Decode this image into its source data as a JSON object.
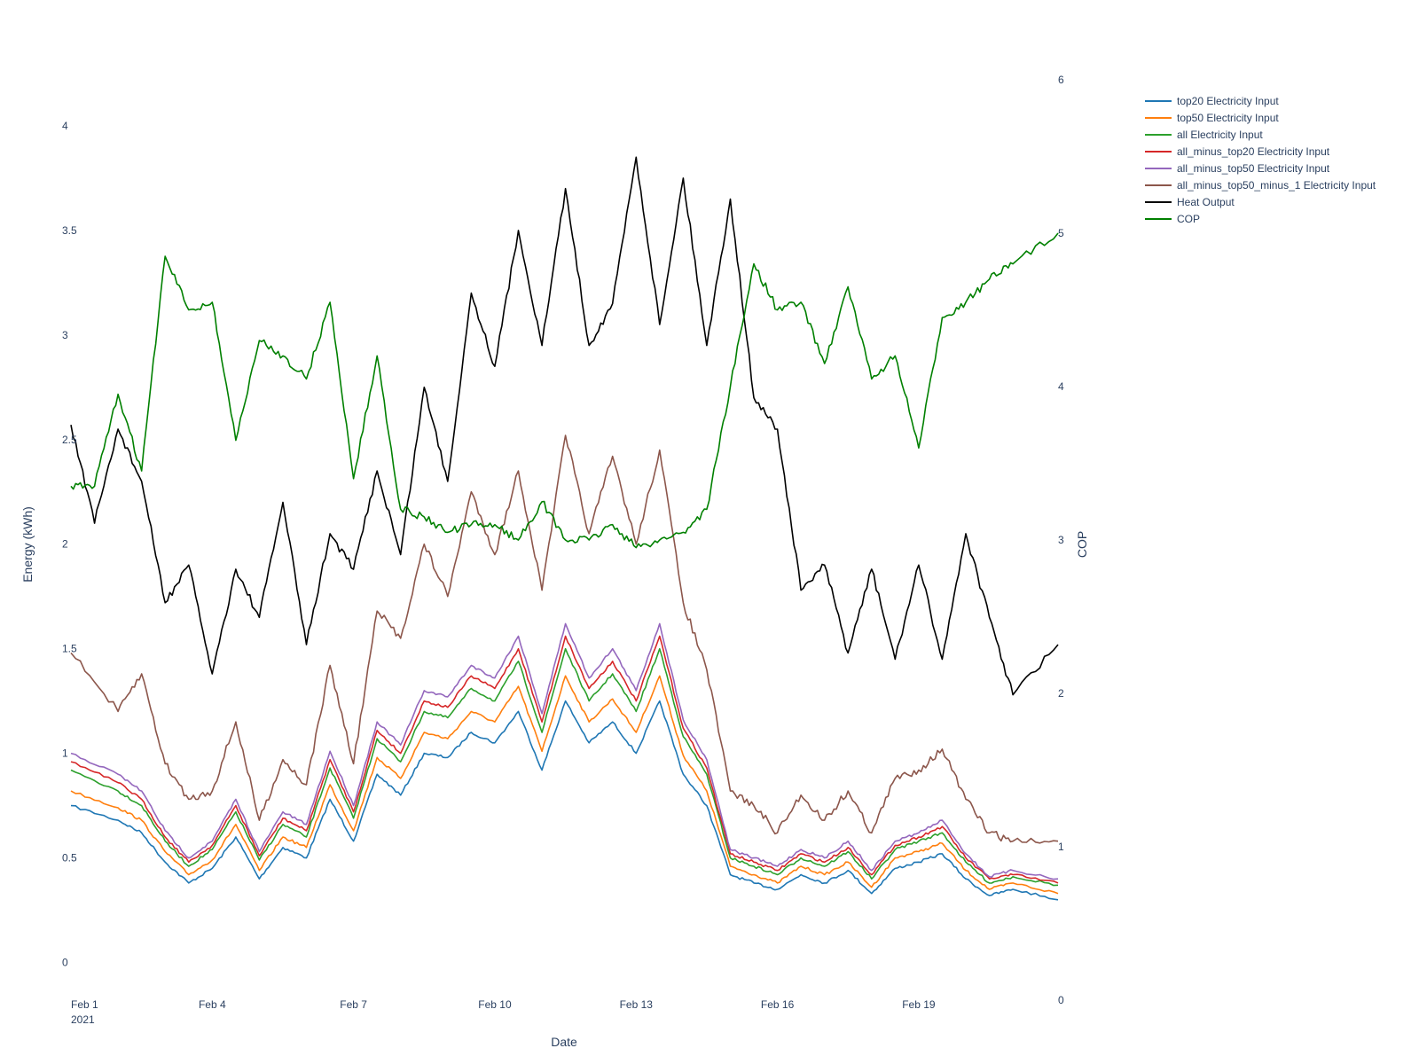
{
  "chart_data": {
    "type": "line",
    "title": "",
    "xlabel": "Date",
    "ylabel": "Energy (kWh)",
    "y2label": "COP",
    "xrange": [
      "2021-02-01",
      "2021-02-21T23:00"
    ],
    "x_ticks": [
      "Feb 1",
      "Feb 4",
      "Feb 7",
      "Feb 10",
      "Feb 13",
      "Feb 16",
      "Feb 19"
    ],
    "x_tick_dates": [
      "2021-02-01",
      "2021-02-04",
      "2021-02-07",
      "2021-02-10",
      "2021-02-13",
      "2021-02-16",
      "2021-02-19"
    ],
    "x_tick_year": "2021",
    "ylim": [
      -0.18,
      4.22
    ],
    "y_ticks": [
      "0",
      "0.5",
      "1",
      "1.5",
      "2",
      "2.5",
      "3",
      "3.5",
      "4"
    ],
    "y2lim": [
      0,
      6
    ],
    "y2_ticks": [
      "0",
      "1",
      "2",
      "3",
      "4",
      "5",
      "6"
    ],
    "legend_position": "top-right",
    "grid": false,
    "series": [
      {
        "name": "top20 Electricity Input",
        "axis": "y",
        "color": "#1f77b4",
        "x": [
          "2021-02-01",
          "2021-02-02",
          "2021-02-02T12:00",
          "2021-02-03",
          "2021-02-03T12:00",
          "2021-02-04",
          "2021-02-04T12:00",
          "2021-02-05",
          "2021-02-05T12:00",
          "2021-02-06",
          "2021-02-06T12:00",
          "2021-02-07",
          "2021-02-07T12:00",
          "2021-02-08",
          "2021-02-08T12:00",
          "2021-02-09",
          "2021-02-09T12:00",
          "2021-02-10",
          "2021-02-10T12:00",
          "2021-02-11",
          "2021-02-11T12:00",
          "2021-02-12",
          "2021-02-12T12:00",
          "2021-02-13",
          "2021-02-13T12:00",
          "2021-02-14",
          "2021-02-14T12:00",
          "2021-02-15",
          "2021-02-15T12:00",
          "2021-02-16",
          "2021-02-16T12:00",
          "2021-02-17",
          "2021-02-17T12:00",
          "2021-02-18",
          "2021-02-18T12:00",
          "2021-02-19",
          "2021-02-19T12:00",
          "2021-02-20",
          "2021-02-20T12:00",
          "2021-02-21",
          "2021-02-21T23:00"
        ],
        "values": [
          0.75,
          0.68,
          0.62,
          0.48,
          0.38,
          0.45,
          0.6,
          0.4,
          0.55,
          0.5,
          0.78,
          0.58,
          0.9,
          0.8,
          1.0,
          0.98,
          1.1,
          1.05,
          1.2,
          0.92,
          1.25,
          1.05,
          1.15,
          1.0,
          1.25,
          0.9,
          0.75,
          0.42,
          0.38,
          0.35,
          0.42,
          0.38,
          0.44,
          0.33,
          0.45,
          0.48,
          0.52,
          0.4,
          0.32,
          0.35,
          0.3
        ]
      },
      {
        "name": "top50 Electricity Input",
        "axis": "y",
        "color": "#ff7f0e",
        "x": [
          "2021-02-01",
          "2021-02-02",
          "2021-02-02T12:00",
          "2021-02-03",
          "2021-02-03T12:00",
          "2021-02-04",
          "2021-02-04T12:00",
          "2021-02-05",
          "2021-02-05T12:00",
          "2021-02-06",
          "2021-02-06T12:00",
          "2021-02-07",
          "2021-02-07T12:00",
          "2021-02-08",
          "2021-02-08T12:00",
          "2021-02-09",
          "2021-02-09T12:00",
          "2021-02-10",
          "2021-02-10T12:00",
          "2021-02-11",
          "2021-02-11T12:00",
          "2021-02-12",
          "2021-02-12T12:00",
          "2021-02-13",
          "2021-02-13T12:00",
          "2021-02-14",
          "2021-02-14T12:00",
          "2021-02-15",
          "2021-02-15T12:00",
          "2021-02-16",
          "2021-02-16T12:00",
          "2021-02-17",
          "2021-02-17T12:00",
          "2021-02-18",
          "2021-02-18T12:00",
          "2021-02-19",
          "2021-02-19T12:00",
          "2021-02-20",
          "2021-02-20T12:00",
          "2021-02-21",
          "2021-02-21T23:00"
        ],
        "values": [
          0.82,
          0.74,
          0.68,
          0.53,
          0.42,
          0.49,
          0.66,
          0.44,
          0.6,
          0.55,
          0.85,
          0.63,
          0.98,
          0.88,
          1.1,
          1.07,
          1.2,
          1.15,
          1.32,
          1.01,
          1.37,
          1.15,
          1.26,
          1.1,
          1.37,
          0.99,
          0.82,
          0.46,
          0.42,
          0.38,
          0.46,
          0.42,
          0.48,
          0.36,
          0.5,
          0.53,
          0.57,
          0.44,
          0.35,
          0.38,
          0.33
        ]
      },
      {
        "name": "all Electricity Input",
        "axis": "y",
        "color": "#2ca02c",
        "x": [
          "2021-02-01",
          "2021-02-02",
          "2021-02-02T12:00",
          "2021-02-03",
          "2021-02-03T12:00",
          "2021-02-04",
          "2021-02-04T12:00",
          "2021-02-05",
          "2021-02-05T12:00",
          "2021-02-06",
          "2021-02-06T12:00",
          "2021-02-07",
          "2021-02-07T12:00",
          "2021-02-08",
          "2021-02-08T12:00",
          "2021-02-09",
          "2021-02-09T12:00",
          "2021-02-10",
          "2021-02-10T12:00",
          "2021-02-11",
          "2021-02-11T12:00",
          "2021-02-12",
          "2021-02-12T12:00",
          "2021-02-13",
          "2021-02-13T12:00",
          "2021-02-14",
          "2021-02-14T12:00",
          "2021-02-15",
          "2021-02-15T12:00",
          "2021-02-16",
          "2021-02-16T12:00",
          "2021-02-17",
          "2021-02-17T12:00",
          "2021-02-18",
          "2021-02-18T12:00",
          "2021-02-19",
          "2021-02-19T12:00",
          "2021-02-20",
          "2021-02-20T12:00",
          "2021-02-21",
          "2021-02-21T23:00"
        ],
        "values": [
          0.92,
          0.82,
          0.75,
          0.58,
          0.46,
          0.54,
          0.72,
          0.49,
          0.66,
          0.6,
          0.93,
          0.69,
          1.07,
          0.96,
          1.2,
          1.17,
          1.31,
          1.25,
          1.44,
          1.1,
          1.5,
          1.25,
          1.38,
          1.2,
          1.5,
          1.08,
          0.9,
          0.5,
          0.46,
          0.42,
          0.5,
          0.46,
          0.53,
          0.4,
          0.54,
          0.58,
          0.62,
          0.48,
          0.38,
          0.41,
          0.37
        ]
      },
      {
        "name": "all_minus_top20 Electricity Input",
        "axis": "y",
        "color": "#d62728",
        "x": [
          "2021-02-01",
          "2021-02-02",
          "2021-02-02T12:00",
          "2021-02-03",
          "2021-02-03T12:00",
          "2021-02-04",
          "2021-02-04T12:00",
          "2021-02-05",
          "2021-02-05T12:00",
          "2021-02-06",
          "2021-02-06T12:00",
          "2021-02-07",
          "2021-02-07T12:00",
          "2021-02-08",
          "2021-02-08T12:00",
          "2021-02-09",
          "2021-02-09T12:00",
          "2021-02-10",
          "2021-02-10T12:00",
          "2021-02-11",
          "2021-02-11T12:00",
          "2021-02-12",
          "2021-02-12T12:00",
          "2021-02-13",
          "2021-02-13T12:00",
          "2021-02-14",
          "2021-02-14T12:00",
          "2021-02-15",
          "2021-02-15T12:00",
          "2021-02-16",
          "2021-02-16T12:00",
          "2021-02-17",
          "2021-02-17T12:00",
          "2021-02-18",
          "2021-02-18T12:00",
          "2021-02-19",
          "2021-02-19T12:00",
          "2021-02-20",
          "2021-02-20T12:00",
          "2021-02-21",
          "2021-02-21T23:00"
        ],
        "values": [
          0.96,
          0.86,
          0.78,
          0.6,
          0.48,
          0.56,
          0.75,
          0.51,
          0.69,
          0.63,
          0.97,
          0.72,
          1.11,
          1.0,
          1.25,
          1.22,
          1.37,
          1.31,
          1.5,
          1.15,
          1.56,
          1.31,
          1.44,
          1.25,
          1.56,
          1.12,
          0.93,
          0.52,
          0.48,
          0.44,
          0.52,
          0.48,
          0.55,
          0.42,
          0.56,
          0.6,
          0.65,
          0.5,
          0.4,
          0.42,
          0.38
        ]
      },
      {
        "name": "all_minus_top50 Electricity Input",
        "axis": "y",
        "color": "#9467bd",
        "x": [
          "2021-02-01",
          "2021-02-02",
          "2021-02-02T12:00",
          "2021-02-03",
          "2021-02-03T12:00",
          "2021-02-04",
          "2021-02-04T12:00",
          "2021-02-05",
          "2021-02-05T12:00",
          "2021-02-06",
          "2021-02-06T12:00",
          "2021-02-07",
          "2021-02-07T12:00",
          "2021-02-08",
          "2021-02-08T12:00",
          "2021-02-09",
          "2021-02-09T12:00",
          "2021-02-10",
          "2021-02-10T12:00",
          "2021-02-11",
          "2021-02-11T12:00",
          "2021-02-12",
          "2021-02-12T12:00",
          "2021-02-13",
          "2021-02-13T12:00",
          "2021-02-14",
          "2021-02-14T12:00",
          "2021-02-15",
          "2021-02-15T12:00",
          "2021-02-16",
          "2021-02-16T12:00",
          "2021-02-17",
          "2021-02-17T12:00",
          "2021-02-18",
          "2021-02-18T12:00",
          "2021-02-19",
          "2021-02-19T12:00",
          "2021-02-20",
          "2021-02-20T12:00",
          "2021-02-21",
          "2021-02-21T23:00"
        ],
        "values": [
          1.0,
          0.9,
          0.82,
          0.63,
          0.5,
          0.58,
          0.78,
          0.53,
          0.72,
          0.66,
          1.01,
          0.75,
          1.15,
          1.04,
          1.3,
          1.27,
          1.42,
          1.36,
          1.56,
          1.19,
          1.62,
          1.36,
          1.5,
          1.3,
          1.62,
          1.16,
          0.97,
          0.54,
          0.5,
          0.46,
          0.54,
          0.5,
          0.58,
          0.44,
          0.58,
          0.62,
          0.68,
          0.52,
          0.41,
          0.44,
          0.4
        ]
      },
      {
        "name": "all_minus_top50_minus_1 Electricity Input",
        "axis": "y",
        "color": "#8c564b",
        "x": [
          "2021-02-01",
          "2021-02-02",
          "2021-02-02T12:00",
          "2021-02-03",
          "2021-02-03T12:00",
          "2021-02-04",
          "2021-02-04T12:00",
          "2021-02-05",
          "2021-02-05T12:00",
          "2021-02-06",
          "2021-02-06T12:00",
          "2021-02-07",
          "2021-02-07T12:00",
          "2021-02-08",
          "2021-02-08T12:00",
          "2021-02-09",
          "2021-02-09T12:00",
          "2021-02-10",
          "2021-02-10T12:00",
          "2021-02-11",
          "2021-02-11T12:00",
          "2021-02-12",
          "2021-02-12T12:00",
          "2021-02-13",
          "2021-02-13T12:00",
          "2021-02-14",
          "2021-02-14T12:00",
          "2021-02-15",
          "2021-02-15T12:00",
          "2021-02-16",
          "2021-02-16T12:00",
          "2021-02-17",
          "2021-02-17T12:00",
          "2021-02-18",
          "2021-02-18T12:00",
          "2021-02-19",
          "2021-02-19T12:00",
          "2021-02-20",
          "2021-02-20T12:00",
          "2021-02-21",
          "2021-02-21T23:00"
        ],
        "values": [
          1.48,
          1.2,
          1.38,
          0.95,
          0.78,
          0.82,
          1.15,
          0.68,
          0.97,
          0.85,
          1.42,
          0.95,
          1.68,
          1.55,
          2.0,
          1.75,
          2.25,
          1.95,
          2.35,
          1.78,
          2.52,
          2.05,
          2.42,
          2.0,
          2.45,
          1.72,
          1.4,
          0.82,
          0.75,
          0.62,
          0.8,
          0.68,
          0.82,
          0.62,
          0.88,
          0.92,
          1.02,
          0.78,
          0.62,
          0.58,
          0.58
        ]
      },
      {
        "name": "Heat Output",
        "axis": "y",
        "color": "#000000",
        "x": [
          "2021-02-01",
          "2021-02-01T12:00",
          "2021-02-02",
          "2021-02-02T12:00",
          "2021-02-03",
          "2021-02-03T12:00",
          "2021-02-04",
          "2021-02-04T12:00",
          "2021-02-05",
          "2021-02-05T12:00",
          "2021-02-06",
          "2021-02-06T12:00",
          "2021-02-07",
          "2021-02-07T12:00",
          "2021-02-08",
          "2021-02-08T12:00",
          "2021-02-09",
          "2021-02-09T12:00",
          "2021-02-10",
          "2021-02-10T12:00",
          "2021-02-11",
          "2021-02-11T12:00",
          "2021-02-12",
          "2021-02-12T12:00",
          "2021-02-13",
          "2021-02-13T12:00",
          "2021-02-14",
          "2021-02-14T12:00",
          "2021-02-15",
          "2021-02-15T12:00",
          "2021-02-16",
          "2021-02-16T12:00",
          "2021-02-17",
          "2021-02-17T12:00",
          "2021-02-18",
          "2021-02-18T12:00",
          "2021-02-19",
          "2021-02-19T12:00",
          "2021-02-20",
          "2021-02-20T12:00",
          "2021-02-21",
          "2021-02-21T23:00"
        ],
        "values": [
          2.57,
          2.1,
          2.55,
          2.3,
          1.72,
          1.9,
          1.38,
          1.88,
          1.65,
          2.2,
          1.52,
          2.05,
          1.88,
          2.35,
          1.95,
          2.75,
          2.3,
          3.2,
          2.85,
          3.5,
          2.95,
          3.7,
          2.95,
          3.15,
          3.85,
          3.05,
          3.75,
          2.95,
          3.65,
          2.7,
          2.55,
          1.78,
          1.9,
          1.48,
          1.88,
          1.45,
          1.9,
          1.45,
          2.05,
          1.65,
          1.28,
          1.52
        ]
      },
      {
        "name": "COP",
        "axis": "y2",
        "color": "#008000",
        "x": [
          "2021-02-01",
          "2021-02-01T12:00",
          "2021-02-02",
          "2021-02-02T12:00",
          "2021-02-03",
          "2021-02-03T12:00",
          "2021-02-04",
          "2021-02-04T12:00",
          "2021-02-05",
          "2021-02-05T12:00",
          "2021-02-06",
          "2021-02-06T12:00",
          "2021-02-07",
          "2021-02-07T12:00",
          "2021-02-08",
          "2021-02-08T12:00",
          "2021-02-09",
          "2021-02-09T12:00",
          "2021-02-10",
          "2021-02-10T12:00",
          "2021-02-11",
          "2021-02-11T12:00",
          "2021-02-12",
          "2021-02-12T12:00",
          "2021-02-13",
          "2021-02-13T12:00",
          "2021-02-14",
          "2021-02-14T12:00",
          "2021-02-15",
          "2021-02-15T12:00",
          "2021-02-16",
          "2021-02-16T12:00",
          "2021-02-17",
          "2021-02-17T12:00",
          "2021-02-18",
          "2021-02-18T12:00",
          "2021-02-19",
          "2021-02-19T12:00",
          "2021-02-20",
          "2021-02-20T12:00",
          "2021-02-21",
          "2021-02-21T23:00"
        ],
        "values": [
          3.35,
          3.35,
          3.95,
          3.45,
          4.85,
          4.5,
          4.55,
          3.65,
          4.3,
          4.2,
          4.05,
          4.55,
          3.4,
          4.2,
          3.2,
          3.15,
          3.05,
          3.1,
          3.1,
          3.0,
          3.25,
          3.0,
          3.0,
          3.1,
          2.95,
          3.0,
          3.05,
          3.2,
          4.0,
          4.8,
          4.5,
          4.55,
          4.15,
          4.65,
          4.05,
          4.2,
          3.6,
          4.45,
          4.55,
          4.7,
          4.8,
          5.0
        ]
      }
    ]
  }
}
